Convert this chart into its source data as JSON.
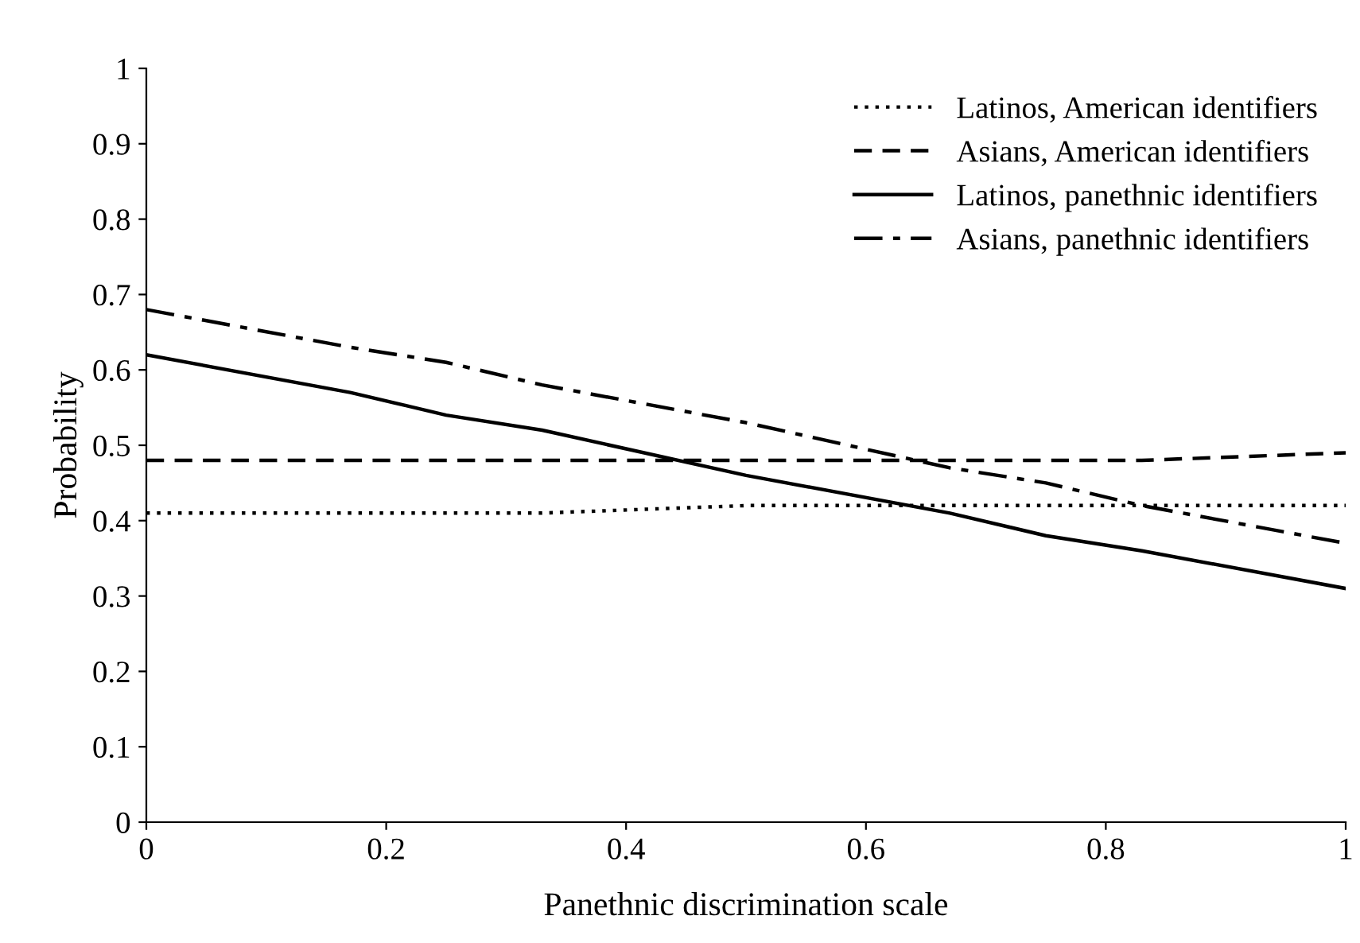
{
  "chart_data": {
    "type": "line",
    "xlabel": "Panethnic discrimination scale",
    "ylabel": "Probability",
    "xlim": [
      0,
      1
    ],
    "ylim": [
      0,
      1
    ],
    "xticks": [
      0,
      {
        "value": 0.2,
        "label": "0.2"
      },
      {
        "value": 0.4,
        "label": "0.4"
      },
      {
        "value": 0.6,
        "label": "0.6"
      },
      {
        "value": 0.8,
        "label": "0.8"
      },
      1
    ],
    "yticks": [
      0,
      0.1,
      0.2,
      0.3,
      0.4,
      0.5,
      0.6,
      0.7,
      0.8,
      0.9,
      1
    ],
    "grid": false,
    "legend": "top right",
    "marker": "none",
    "series": [
      {
        "name": "Latinos, American identifiers",
        "color": "#000000",
        "line_style": "dotted",
        "x": [
          0,
          0.33,
          0.5,
          1
        ],
        "values": [
          0.41,
          0.41,
          0.42,
          0.42
        ]
      },
      {
        "name": "Asians, American identifiers",
        "color": "#000000",
        "line_style": "dashed",
        "x": [
          0,
          0.83,
          1
        ],
        "values": [
          0.48,
          0.48,
          0.49
        ]
      },
      {
        "name": "Latinos, panethnic identifiers",
        "color": "#000000",
        "line_style": "solid",
        "x": [
          0,
          0.17,
          0.25,
          0.33,
          0.5,
          0.67,
          0.75,
          0.83,
          1
        ],
        "values": [
          0.62,
          0.57,
          0.54,
          0.52,
          0.46,
          0.41,
          0.38,
          0.36,
          0.31
        ]
      },
      {
        "name": "Asians, panethnic identifiers",
        "color": "#000000",
        "line_style": "dashdot",
        "x": [
          0,
          0.17,
          0.25,
          0.33,
          0.5,
          0.67,
          0.75,
          0.83,
          1
        ],
        "values": [
          0.68,
          0.63,
          0.61,
          0.58,
          0.53,
          0.47,
          0.45,
          0.42,
          0.37
        ]
      }
    ]
  }
}
